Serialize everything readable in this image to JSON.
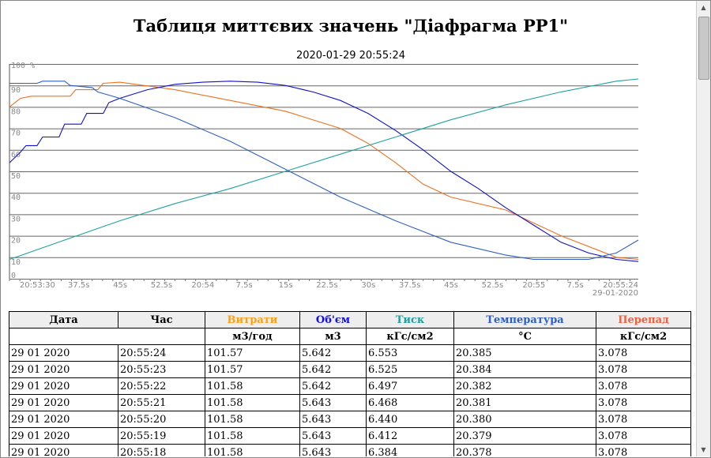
{
  "page": {
    "title": "Таблиця миттєвих значень \"Діафрагма PP1\"",
    "timestamp": "2020-01-29 20:55:24"
  },
  "chart_data": {
    "type": "line",
    "y_unit_label": "100 %",
    "ylim": [
      0,
      100
    ],
    "y_ticks": [
      0,
      10,
      20,
      30,
      40,
      50,
      60,
      70,
      80,
      90
    ],
    "x_ticks": [
      "20:53:30",
      "37.5s",
      "45s",
      "52.5s",
      "20:54",
      "7.5s",
      "15s",
      "22.5s",
      "30s",
      "37.5s",
      "45s",
      "52.5s",
      "20:55",
      "7.5s",
      "20:55:24"
    ],
    "x_end_date": "29-01-2020",
    "xlim": [
      0,
      114
    ],
    "x_tick_positions": [
      7.5,
      15,
      22.5,
      30,
      37.5,
      45,
      52.5,
      60,
      67.5,
      75,
      82.5,
      90,
      97.5,
      105,
      114
    ],
    "grid": true,
    "series": [
      {
        "key": "flow",
        "color": "#f07020",
        "points": [
          [
            0,
            80
          ],
          [
            2,
            84
          ],
          [
            4,
            85
          ],
          [
            11,
            85
          ],
          [
            12,
            88
          ],
          [
            16,
            88
          ],
          [
            17,
            91
          ],
          [
            20,
            91.5
          ],
          [
            30,
            88
          ],
          [
            40,
            83
          ],
          [
            50,
            78
          ],
          [
            60,
            70
          ],
          [
            65,
            63
          ],
          [
            70,
            54
          ],
          [
            75,
            44
          ],
          [
            80,
            38
          ],
          [
            90,
            32
          ],
          [
            100,
            20
          ],
          [
            110,
            10
          ],
          [
            114,
            9
          ]
        ]
      },
      {
        "key": "volume",
        "color": "#1010d0",
        "points": [
          [
            0,
            54
          ],
          [
            2,
            59
          ],
          [
            3,
            62
          ],
          [
            5,
            62
          ],
          [
            6,
            66
          ],
          [
            9,
            66
          ],
          [
            10,
            72
          ],
          [
            13,
            72
          ],
          [
            14,
            77
          ],
          [
            17,
            77
          ],
          [
            18,
            82
          ],
          [
            20,
            84
          ],
          [
            25,
            88
          ],
          [
            30,
            90.5
          ],
          [
            35,
            91.5
          ],
          [
            40,
            92
          ],
          [
            45,
            91.5
          ],
          [
            50,
            90
          ],
          [
            55,
            87
          ],
          [
            60,
            83
          ],
          [
            65,
            77
          ],
          [
            70,
            69
          ],
          [
            75,
            60
          ],
          [
            80,
            50
          ],
          [
            85,
            42
          ],
          [
            90,
            33
          ],
          [
            95,
            25
          ],
          [
            100,
            17
          ],
          [
            105,
            12
          ],
          [
            110,
            9
          ],
          [
            114,
            8
          ]
        ]
      },
      {
        "key": "pressure",
        "color": "#20a0a0",
        "points": [
          [
            0,
            9
          ],
          [
            10,
            18
          ],
          [
            20,
            27
          ],
          [
            30,
            35
          ],
          [
            40,
            42
          ],
          [
            50,
            50
          ],
          [
            60,
            58
          ],
          [
            70,
            66
          ],
          [
            80,
            74
          ],
          [
            90,
            81
          ],
          [
            100,
            87
          ],
          [
            110,
            92
          ],
          [
            114,
            93
          ]
        ]
      },
      {
        "key": "temperature",
        "color": "#3060c0",
        "points": [
          [
            0,
            91
          ],
          [
            5,
            91
          ],
          [
            6,
            92
          ],
          [
            10,
            92
          ],
          [
            11,
            90
          ],
          [
            15,
            89
          ],
          [
            16,
            87
          ],
          [
            20,
            84
          ],
          [
            30,
            75
          ],
          [
            40,
            64
          ],
          [
            50,
            51
          ],
          [
            60,
            38
          ],
          [
            70,
            27
          ],
          [
            80,
            17
          ],
          [
            90,
            11
          ],
          [
            95,
            9
          ],
          [
            105,
            9
          ],
          [
            110,
            12
          ],
          [
            114,
            18
          ]
        ]
      }
    ]
  },
  "table": {
    "headers": [
      "Дата",
      "Час",
      "Витрати",
      "Об'єм",
      "Тиск",
      "Температура",
      "Перепад"
    ],
    "header_colors": [
      "#000000",
      "#000000",
      "#ffa010",
      "#1010e0",
      "#20a0a0",
      "#3060c0",
      "#f06040"
    ],
    "units": [
      "м3/год",
      "м3",
      "кГс/см2",
      "°С",
      "кГс/см2"
    ],
    "rows": [
      [
        "29 01 2020",
        "20:55:24",
        "101.57",
        "5.642",
        "6.553",
        "20.385",
        "3.078"
      ],
      [
        "29 01 2020",
        "20:55:23",
        "101.57",
        "5.642",
        "6.525",
        "20.384",
        "3.078"
      ],
      [
        "29 01 2020",
        "20:55:22",
        "101.58",
        "5.642",
        "6.497",
        "20.382",
        "3.078"
      ],
      [
        "29 01 2020",
        "20:55:21",
        "101.58",
        "5.643",
        "6.468",
        "20.381",
        "3.078"
      ],
      [
        "29 01 2020",
        "20:55:20",
        "101.58",
        "5.643",
        "6.440",
        "20.380",
        "3.078"
      ],
      [
        "29 01 2020",
        "20:55:19",
        "101.58",
        "5.643",
        "6.412",
        "20.379",
        "3.078"
      ],
      [
        "29 01 2020",
        "20:55:18",
        "101.58",
        "5.643",
        "6.384",
        "20.378",
        "3.078"
      ]
    ]
  }
}
